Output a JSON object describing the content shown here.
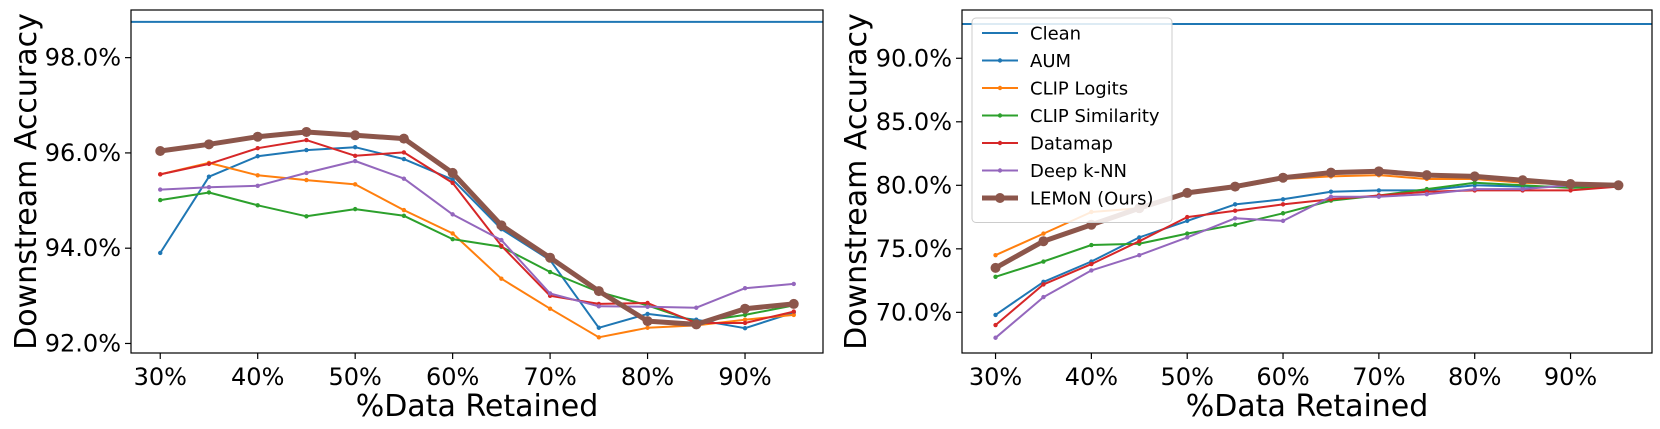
{
  "legend": {
    "entries": [
      {
        "name": "Clean",
        "color": "#1f77b4",
        "style": "line"
      },
      {
        "name": "AUM",
        "color": "#1f77b4",
        "style": "line-marker"
      },
      {
        "name": "CLIP Logits",
        "color": "#ff7f0e",
        "style": "line-marker"
      },
      {
        "name": "CLIP Similarity",
        "color": "#2ca02c",
        "style": "line-marker"
      },
      {
        "name": "Datamap",
        "color": "#d62728",
        "style": "line-marker"
      },
      {
        "name": "Deep k-NN",
        "color": "#9467bd",
        "style": "line-marker"
      },
      {
        "name": "LEMoN (Ours)",
        "color": "#8c564b",
        "style": "thick-line-marker"
      }
    ],
    "placement": "upper-left of right chart"
  },
  "chart_data": [
    {
      "type": "line",
      "xlabel": "%Data Retained",
      "ylabel": "Downstream Accuracy",
      "xlim": [
        27,
        98
      ],
      "ylim": [
        91.8,
        99.0
      ],
      "xticks": [
        30,
        40,
        50,
        60,
        70,
        80,
        90
      ],
      "xtick_labels": [
        "30%",
        "40%",
        "50%",
        "60%",
        "70%",
        "80%",
        "90%"
      ],
      "yticks": [
        92,
        94,
        96,
        98
      ],
      "ytick_labels": [
        "92.0%",
        "94.0%",
        "96.0%",
        "98.0%"
      ],
      "grid": false,
      "clean": 98.75,
      "x": [
        30,
        35,
        40,
        45,
        50,
        55,
        60,
        65,
        70,
        75,
        80,
        85,
        90,
        95
      ],
      "series": [
        {
          "name": "AUM",
          "color": "#1f77b4",
          "values": [
            93.9,
            95.5,
            95.93,
            96.06,
            96.12,
            95.87,
            95.44,
            94.4,
            93.75,
            92.33,
            92.62,
            92.5,
            92.32,
            92.65
          ]
        },
        {
          "name": "CLIP Logits",
          "color": "#ff7f0e",
          "values": [
            95.55,
            95.79,
            95.53,
            95.43,
            95.34,
            94.8,
            94.31,
            93.36,
            92.73,
            92.13,
            92.33,
            92.38,
            92.5,
            92.6
          ]
        },
        {
          "name": "CLIP Similarity",
          "color": "#2ca02c",
          "values": [
            95.01,
            95.17,
            94.9,
            94.67,
            94.82,
            94.68,
            94.19,
            94.03,
            93.5,
            93.08,
            92.8,
            92.45,
            92.6,
            92.8
          ]
        },
        {
          "name": "Datamap",
          "color": "#d62728",
          "values": [
            95.55,
            95.77,
            96.1,
            96.27,
            95.94,
            96.01,
            95.37,
            94.05,
            93.0,
            92.83,
            92.85,
            92.43,
            92.43,
            92.67
          ]
        },
        {
          "name": "Deep k-NN",
          "color": "#9467bd",
          "values": [
            95.23,
            95.28,
            95.31,
            95.58,
            95.83,
            95.46,
            94.71,
            94.17,
            93.05,
            92.78,
            92.77,
            92.75,
            93.16,
            93.25
          ]
        },
        {
          "name": "LEMoN (Ours)",
          "color": "#8c564b",
          "values": [
            96.04,
            96.18,
            96.34,
            96.44,
            96.37,
            96.3,
            95.58,
            94.48,
            93.8,
            93.1,
            92.47,
            92.4,
            92.73,
            92.83
          ]
        }
      ]
    },
    {
      "type": "line",
      "xlabel": "%Data Retained",
      "ylabel": "Downstream Accuracy",
      "xlim": [
        26.5,
        98.5
      ],
      "ylim": [
        66.8,
        93.8
      ],
      "xticks": [
        30,
        40,
        50,
        60,
        70,
        80,
        90
      ],
      "xtick_labels": [
        "30%",
        "40%",
        "50%",
        "60%",
        "70%",
        "80%",
        "90%"
      ],
      "yticks": [
        70,
        75,
        80,
        85,
        90
      ],
      "ytick_labels": [
        "70.0%",
        "75.0%",
        "80.0%",
        "85.0%",
        "90.0%"
      ],
      "grid": false,
      "clean": 92.7,
      "x": [
        30,
        35,
        40,
        45,
        50,
        55,
        60,
        65,
        70,
        75,
        80,
        85,
        90,
        95
      ],
      "series": [
        {
          "name": "AUM",
          "color": "#1f77b4",
          "values": [
            69.8,
            72.4,
            74.0,
            75.9,
            77.2,
            78.5,
            78.9,
            79.5,
            79.6,
            79.6,
            80.0,
            79.9,
            79.9,
            80.0
          ]
        },
        {
          "name": "CLIP Logits",
          "color": "#ff7f0e",
          "values": [
            74.5,
            76.2,
            77.9,
            78.2,
            79.4,
            79.8,
            80.5,
            80.7,
            80.8,
            80.5,
            80.5,
            80.2,
            80.1,
            80.1
          ]
        },
        {
          "name": "CLIP Similarity",
          "color": "#2ca02c",
          "values": [
            72.8,
            74.0,
            75.3,
            75.4,
            76.2,
            76.9,
            77.8,
            78.8,
            79.2,
            79.7,
            80.2,
            80.0,
            79.8,
            79.9
          ]
        },
        {
          "name": "Datamap",
          "color": "#d62728",
          "values": [
            69.0,
            72.2,
            73.8,
            75.6,
            77.5,
            78.0,
            78.5,
            78.9,
            79.2,
            79.5,
            79.6,
            79.6,
            79.6,
            79.9
          ]
        },
        {
          "name": "Deep k-NN",
          "color": "#9467bd",
          "values": [
            68.0,
            71.2,
            73.3,
            74.5,
            75.9,
            77.4,
            77.2,
            79.1,
            79.1,
            79.3,
            79.7,
            79.7,
            80.0,
            80.0
          ]
        },
        {
          "name": "LEMoN (Ours)",
          "color": "#8c564b",
          "values": [
            73.5,
            75.6,
            76.9,
            78.2,
            79.4,
            79.9,
            80.6,
            81.0,
            81.1,
            80.8,
            80.7,
            80.4,
            80.1,
            80.0
          ]
        }
      ]
    }
  ]
}
